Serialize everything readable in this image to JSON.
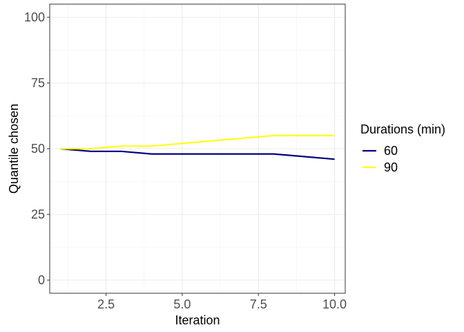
{
  "chart_data": {
    "type": "line",
    "title": "",
    "xlabel": "Iteration",
    "ylabel": "Quantile chosen",
    "xlim": [
      0.65,
      10.35
    ],
    "ylim": [
      -5,
      105
    ],
    "x_ticks": [
      2.5,
      5.0,
      7.5,
      10.0
    ],
    "x_tick_labels": [
      "2.5",
      "5.0",
      "7.5",
      "10.0"
    ],
    "y_ticks": [
      0,
      25,
      50,
      75,
      100
    ],
    "y_tick_labels": [
      "0",
      "25",
      "50",
      "75",
      "100"
    ],
    "grid": true,
    "legend_title": "Durations (min)",
    "legend_placement": "right",
    "series": [
      {
        "name": "60",
        "color": "#00007f",
        "x": [
          1,
          2,
          3,
          4,
          5,
          6,
          7,
          8,
          9,
          10
        ],
        "y": [
          50,
          49,
          49,
          48,
          48,
          48,
          48,
          48,
          47,
          46
        ]
      },
      {
        "name": "90",
        "color": "#ffff1a",
        "x": [
          1,
          2,
          3,
          4,
          5,
          6,
          7,
          8,
          9,
          10
        ],
        "y": [
          50,
          50,
          51,
          51,
          52,
          53,
          54,
          55,
          55,
          55
        ]
      }
    ]
  }
}
